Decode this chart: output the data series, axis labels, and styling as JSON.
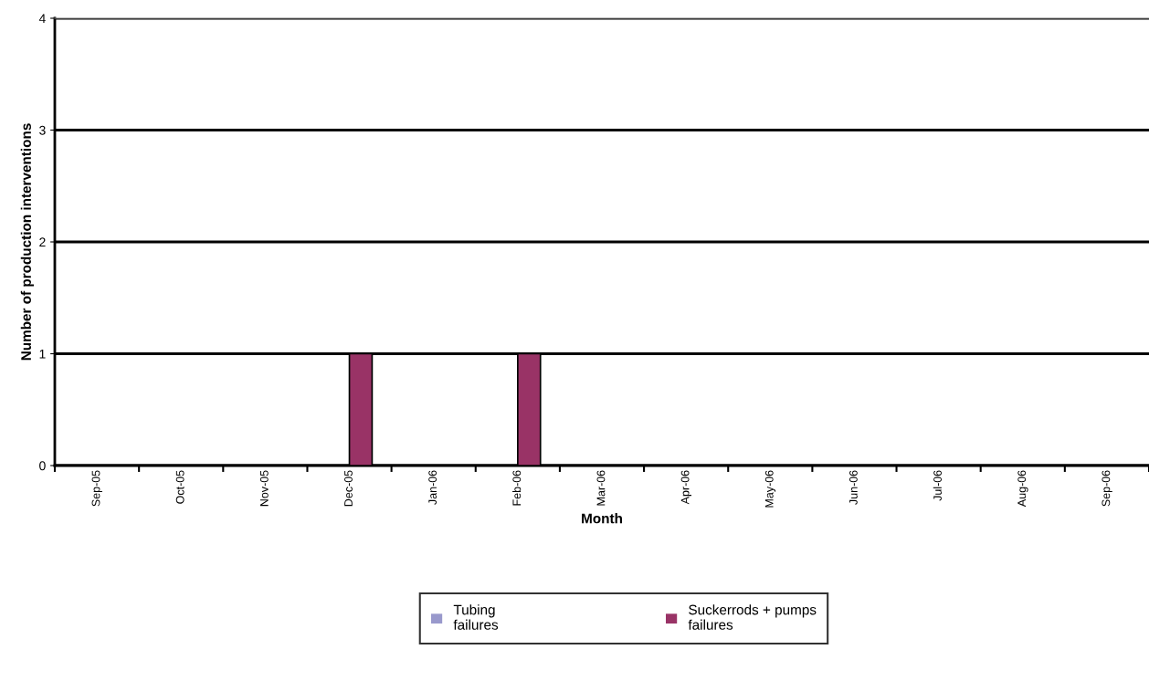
{
  "chart_data": {
    "type": "bar",
    "xlabel": "Month",
    "ylabel": "Number of production interventions",
    "categories": [
      "Sep-05",
      "Oct-05",
      "Nov-05",
      "Dec-05",
      "Jan-06",
      "Feb-06",
      "Mar-06",
      "Apr-06",
      "May-06",
      "Jun-06",
      "Jul-06",
      "Aug-06",
      "Sep-06"
    ],
    "series": [
      {
        "name": "Tubing\nfailures",
        "color": "#9999cc",
        "values": [
          0,
          0,
          0,
          0,
          0,
          0,
          0,
          0,
          0,
          0,
          0,
          0,
          0
        ]
      },
      {
        "name": "Suckerrods + pumps\nfailures",
        "color": "#993366",
        "values": [
          0,
          0,
          0,
          1,
          0,
          1,
          0,
          0,
          0,
          0,
          0,
          0,
          0
        ]
      }
    ],
    "ylim": [
      0,
      4
    ],
    "yticks": [
      0,
      1,
      2,
      3,
      4
    ],
    "grid": "y",
    "legend": "bottom"
  }
}
